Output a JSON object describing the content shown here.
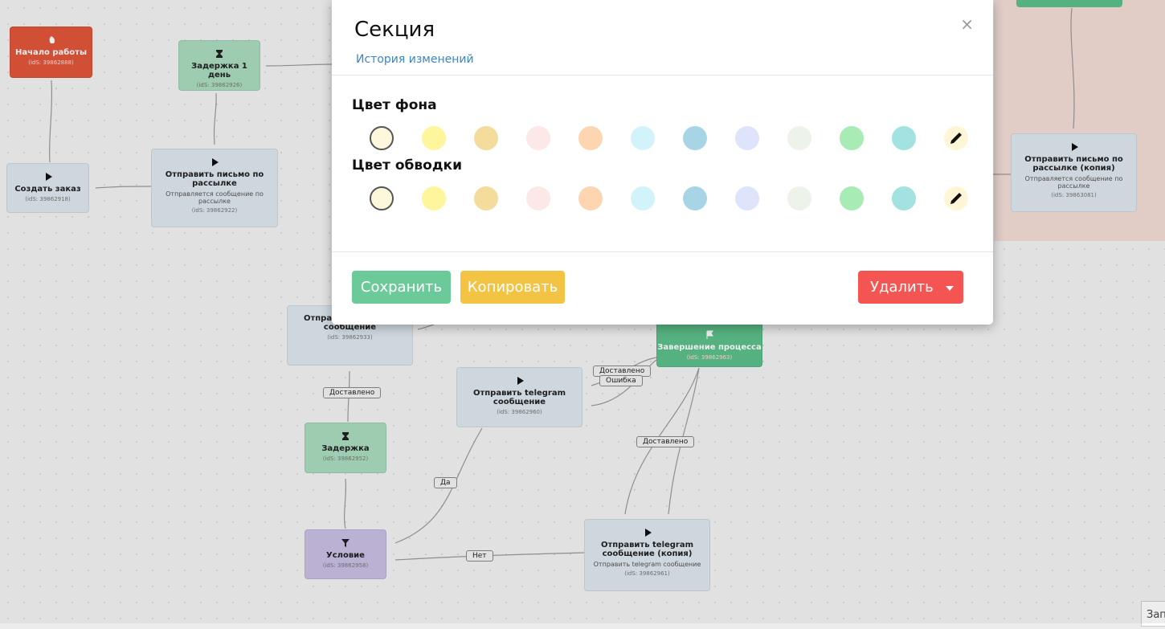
{
  "modal": {
    "title": "Секция",
    "history_link": "История изменений",
    "close": "×",
    "background_color": {
      "label": "Цвет фона",
      "swatches": [
        "#fdf8dc",
        "#fff59d",
        "#f3dc9c",
        "#fde8e8",
        "#fdd5b1",
        "#d3f3fa",
        "#a8d5e5",
        "#dfe4fd",
        "#edf3e9",
        "#a8ebb5",
        "#a2e2e0"
      ]
    },
    "border_color": {
      "label": "Цвет обводки",
      "swatches": [
        "#fdf8dc",
        "#fff59d",
        "#f3dc9c",
        "#fde8e8",
        "#fdd5b1",
        "#d3f3fa",
        "#a8d5e5",
        "#dfe4fd",
        "#edf3e9",
        "#a8ebb5",
        "#a2e2e0"
      ]
    },
    "buttons": {
      "save": "Сохранить",
      "copy": "Копировать",
      "delete": "Удалить"
    }
  },
  "canvas": {
    "nodes": [
      {
        "title": "Начало работы",
        "id": "(idS: 39862888)"
      },
      {
        "title": "Задержка 1 день",
        "id": "(idS: 39862926)"
      },
      {
        "title": "Создать заказ",
        "id": "(idS: 39862918)"
      },
      {
        "title": "Отправить письмо по рассылке",
        "subtitle": "Отправляется сообщение по рассылке",
        "id": "(idS: 39862922)"
      },
      {
        "title": "Отправить письмо по рассылке (копия)",
        "subtitle": "Отправляется сообщение по рассылке",
        "id": "(idS: 39863081)"
      },
      {
        "title": "Отправить telegram сообщение",
        "id": "(idS: 39862933)"
      },
      {
        "title": "Завершение процесса",
        "id": "(idS: 39862963)"
      },
      {
        "title": "Отправить telegram сообщение",
        "id": "(idS: 39862960)"
      },
      {
        "title": "Задержка",
        "id": "(idS: 39862952)"
      },
      {
        "title": "Условие",
        "id": "(idS: 39862958)"
      },
      {
        "title": "Отправить telegram сообщение (копия)",
        "subtitle": "Отправить telegram сообщение",
        "id": "(idS: 39862961)"
      }
    ],
    "edge_labels": [
      "Доставлено",
      "Доставлено",
      "Ошибка",
      "Доставлено",
      "Да",
      "Нет"
    ],
    "corner_button": "Зап"
  }
}
